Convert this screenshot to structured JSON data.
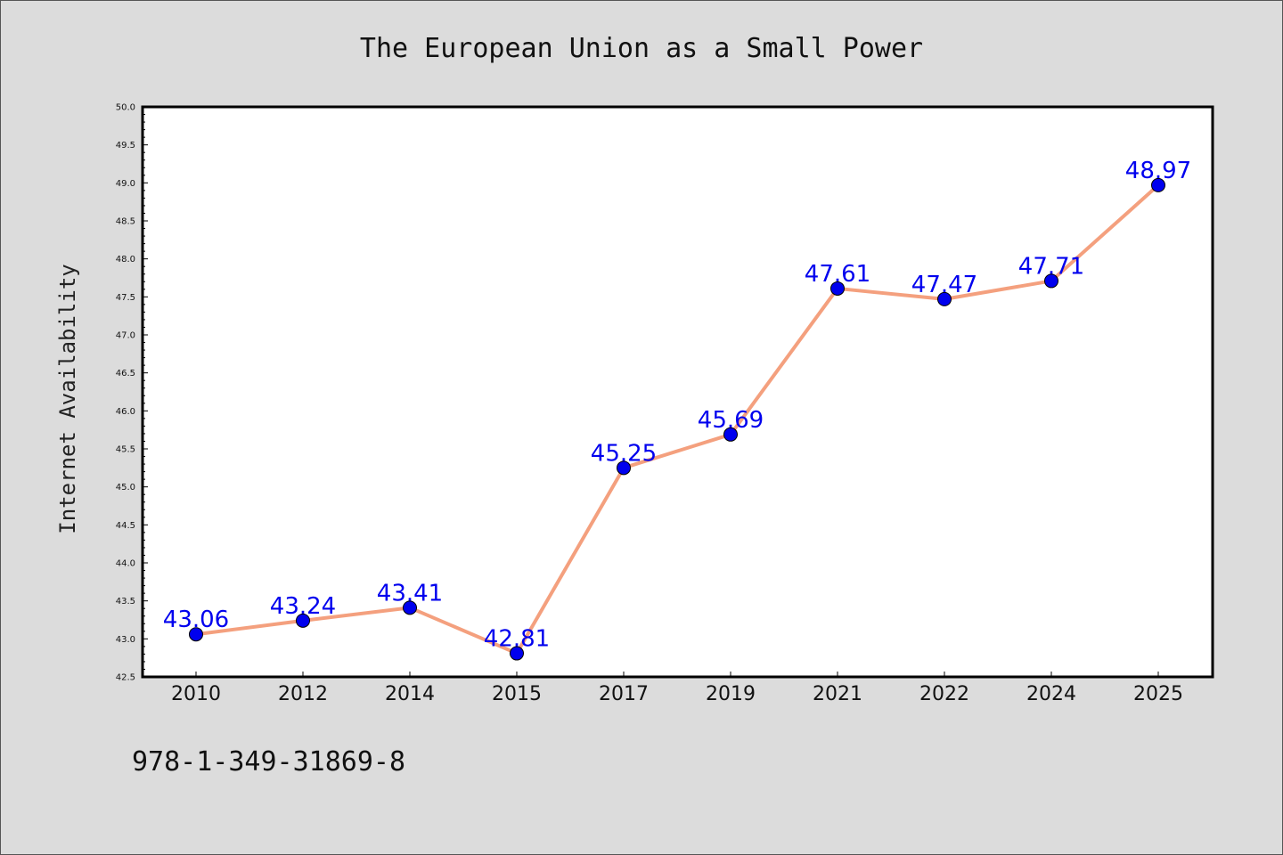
{
  "chart_data": {
    "type": "line",
    "title": "The European Union as a Small Power",
    "xlabel": "",
    "ylabel": "Internet Availability",
    "categories": [
      "2010",
      "2012",
      "2014",
      "2015",
      "2017",
      "2019",
      "2021",
      "2022",
      "2024",
      "2025"
    ],
    "values": [
      43.06,
      43.24,
      43.41,
      42.81,
      45.25,
      45.69,
      47.61,
      47.47,
      47.71,
      48.97
    ],
    "data_labels": [
      "43.06",
      "43.24",
      "43.41",
      "42.81",
      "45.25",
      "45.69",
      "47.61",
      "47.47",
      "47.71",
      "48.97"
    ],
    "ylim": [
      42.5,
      50.0
    ],
    "yticks": [
      "42.5",
      "43.0",
      "43.5",
      "44.0",
      "44.5",
      "45.0",
      "45.5",
      "46.0",
      "46.5",
      "47.0",
      "47.5",
      "48.0",
      "48.5",
      "49.0",
      "49.5",
      "50.0"
    ],
    "grid": false,
    "legend": "none",
    "line_color": "#f4a07e",
    "marker_color": "#0000ee",
    "label_color": "#0000ee"
  },
  "footer": {
    "isbn": "978-1-349-31869-8"
  }
}
